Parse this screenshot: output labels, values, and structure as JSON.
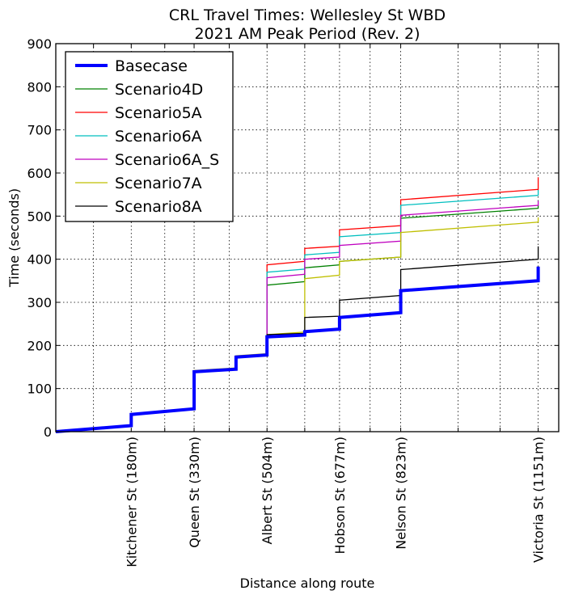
{
  "chart_data": {
    "type": "line",
    "title": "CRL Travel Times: Wellesley St WBD",
    "subtitle": "2021 AM Peak Period (Rev. 2)",
    "xlabel": "Distance along route",
    "ylabel": "Time (seconds)",
    "xlim": [
      0,
      1200
    ],
    "ylim": [
      0,
      900
    ],
    "yticks": [
      0,
      100,
      200,
      300,
      400,
      500,
      600,
      700,
      800,
      900
    ],
    "grid": true,
    "legend_position": "top-left",
    "minor_grid_x": [
      90,
      260,
      414,
      594,
      750,
      960,
      1060
    ],
    "stops": [
      {
        "label": "Kitchener St (180m)",
        "x": 180
      },
      {
        "label": "Queen St (330m)",
        "x": 330
      },
      {
        "label": "Albert St (504m)",
        "x": 504
      },
      {
        "label": "Hobson St (677m)",
        "x": 677
      },
      {
        "label": "Nelson St (823m)",
        "x": 823
      },
      {
        "label": "Victoria St (1151m)",
        "x": 1151
      }
    ],
    "series": [
      {
        "name": "Basecase",
        "color": "#0000ff",
        "width": 4,
        "points": [
          [
            0,
            0
          ],
          [
            180,
            14
          ],
          [
            180,
            40
          ],
          [
            330,
            53
          ],
          [
            330,
            139
          ],
          [
            430,
            145
          ],
          [
            430,
            173
          ],
          [
            504,
            178
          ],
          [
            504,
            220
          ],
          [
            594,
            224
          ],
          [
            594,
            232
          ],
          [
            677,
            238
          ],
          [
            677,
            265
          ],
          [
            823,
            276
          ],
          [
            823,
            327
          ],
          [
            1151,
            350
          ],
          [
            1151,
            383
          ]
        ]
      },
      {
        "name": "Scenario4D",
        "color": "#008000",
        "width": 1.3,
        "points": [
          [
            0,
            0
          ],
          [
            180,
            14
          ],
          [
            180,
            40
          ],
          [
            330,
            53
          ],
          [
            330,
            139
          ],
          [
            430,
            145
          ],
          [
            430,
            173
          ],
          [
            504,
            178
          ],
          [
            504,
            340
          ],
          [
            594,
            348
          ],
          [
            594,
            380
          ],
          [
            677,
            387
          ],
          [
            677,
            395
          ],
          [
            823,
            405
          ],
          [
            823,
            495
          ],
          [
            1151,
            518
          ],
          [
            1151,
            525
          ]
        ]
      },
      {
        "name": "Scenario5A",
        "color": "#ff0000",
        "width": 1.3,
        "points": [
          [
            0,
            0
          ],
          [
            180,
            14
          ],
          [
            180,
            40
          ],
          [
            330,
            53
          ],
          [
            330,
            139
          ],
          [
            430,
            145
          ],
          [
            430,
            173
          ],
          [
            504,
            178
          ],
          [
            504,
            387
          ],
          [
            594,
            395
          ],
          [
            594,
            425
          ],
          [
            677,
            430
          ],
          [
            677,
            468
          ],
          [
            823,
            478
          ],
          [
            823,
            538
          ],
          [
            1151,
            562
          ],
          [
            1151,
            590
          ]
        ]
      },
      {
        "name": "Scenario6A",
        "color": "#00bfbf",
        "width": 1.3,
        "points": [
          [
            0,
            0
          ],
          [
            180,
            14
          ],
          [
            180,
            40
          ],
          [
            330,
            53
          ],
          [
            330,
            139
          ],
          [
            430,
            145
          ],
          [
            430,
            173
          ],
          [
            504,
            178
          ],
          [
            504,
            370
          ],
          [
            594,
            377
          ],
          [
            594,
            410
          ],
          [
            677,
            416
          ],
          [
            677,
            452
          ],
          [
            823,
            462
          ],
          [
            823,
            525
          ],
          [
            1151,
            548
          ],
          [
            1151,
            560
          ]
        ]
      },
      {
        "name": "Scenario6A_S",
        "color": "#bf00bf",
        "width": 1.3,
        "points": [
          [
            0,
            0
          ],
          [
            180,
            14
          ],
          [
            180,
            40
          ],
          [
            330,
            53
          ],
          [
            330,
            139
          ],
          [
            430,
            145
          ],
          [
            430,
            173
          ],
          [
            504,
            178
          ],
          [
            504,
            357
          ],
          [
            594,
            365
          ],
          [
            594,
            400
          ],
          [
            677,
            405
          ],
          [
            677,
            432
          ],
          [
            823,
            442
          ],
          [
            823,
            502
          ],
          [
            1151,
            525
          ],
          [
            1151,
            535
          ]
        ]
      },
      {
        "name": "Scenario7A",
        "color": "#bfbf00",
        "width": 1.3,
        "points": [
          [
            0,
            0
          ],
          [
            180,
            14
          ],
          [
            180,
            40
          ],
          [
            330,
            53
          ],
          [
            330,
            142
          ],
          [
            430,
            148
          ],
          [
            430,
            176
          ],
          [
            504,
            181
          ],
          [
            504,
            225
          ],
          [
            594,
            231
          ],
          [
            594,
            355
          ],
          [
            677,
            363
          ],
          [
            677,
            395
          ],
          [
            823,
            405
          ],
          [
            823,
            462
          ],
          [
            1151,
            486
          ],
          [
            1151,
            497
          ]
        ]
      },
      {
        "name": "Scenario8A",
        "color": "#000000",
        "width": 1.3,
        "points": [
          [
            0,
            0
          ],
          [
            180,
            14
          ],
          [
            180,
            40
          ],
          [
            330,
            53
          ],
          [
            330,
            139
          ],
          [
            430,
            145
          ],
          [
            430,
            173
          ],
          [
            504,
            178
          ],
          [
            504,
            225
          ],
          [
            594,
            228
          ],
          [
            594,
            265
          ],
          [
            677,
            268
          ],
          [
            677,
            305
          ],
          [
            823,
            316
          ],
          [
            823,
            376
          ],
          [
            1151,
            400
          ],
          [
            1151,
            430
          ]
        ]
      }
    ]
  }
}
